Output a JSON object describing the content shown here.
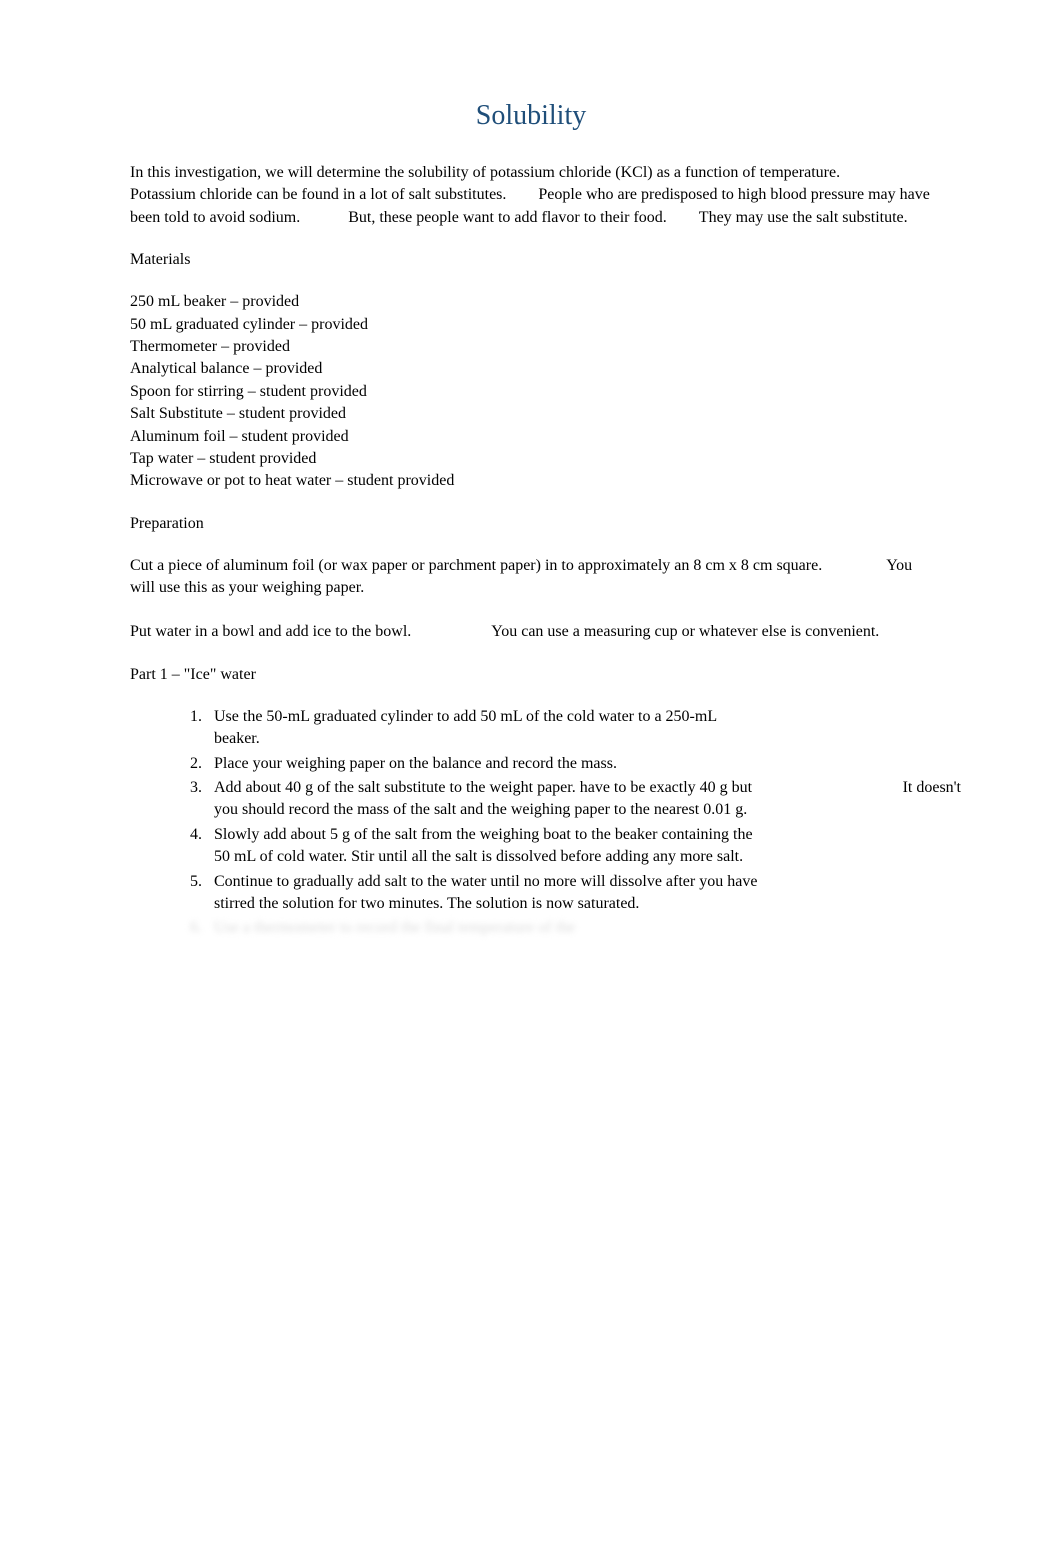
{
  "title": "Solubility",
  "intro": "In this investigation, we will determine the solubility of potassium chloride (KCl) as a function of temperature.   Potassium chloride can be found in a lot of salt substitutes.  People who are predisposed to high blood pressure may have been told to avoid sodium.   But, these people want to add flavor to their food.  They may use the salt substitute.",
  "materials_heading": "Materials",
  "materials": [
    "250 mL beaker – provided",
    "50 mL graduated cylinder – provided",
    "Thermometer – provided",
    "Analytical balance – provided",
    "Spoon for stirring – student provided",
    "Salt Substitute – student provided",
    "Aluminum foil – student provided",
    "Tap water – student provided",
    "Microwave or pot to heat water – student provided"
  ],
  "preparation_heading": "Preparation",
  "prep_para_1": "Cut a piece of aluminum foil (or wax paper or parchment paper) in to approximately an 8 cm x 8 cm square.    You will use this as your weighing paper.",
  "prep_para_2": "Put water in a bowl and add ice to the bowl.     You can use a measuring cup or whatever else is convenient.",
  "part1_heading": "Part 1 – \"Ice\" water",
  "steps": [
    "Use the 50-mL graduated cylinder to add 50 mL of the cold water to a 250-mL beaker.",
    "Place your weighing paper on the balance and record the mass.",
    "Add about 40 g of the salt substitute to the weight paper.",
    "Slowly add about 5 g of the salt from the weighing boat to the beaker containing the 50 mL of cold water. Stir until all the salt is dissolved before adding any more salt.",
    "Continue to gradually add salt to the water until no more will dissolve after you have stirred the solution for two minutes. The solution is now saturated.",
    "Use a thermometer to record the final temperature of the"
  ],
  "step3_extra": "It doesn't have to be exactly 40 g but you should record the mass of the salt and the weighing paper to the nearest 0.01 g.",
  "it_doesnt": "It doesn't",
  "step3_continuation": "have to be exactly 40 g but you should record the mass of the salt and the weighing paper to the nearest 0.01 g.",
  "colors": {
    "title_color": "#1f4e79",
    "text_color": "#000000",
    "background": "#ffffff",
    "blurred_color": "#dcdcdc"
  },
  "typography": {
    "title_fontsize": 28,
    "body_fontsize": 16,
    "font_family": "Times New Roman"
  }
}
